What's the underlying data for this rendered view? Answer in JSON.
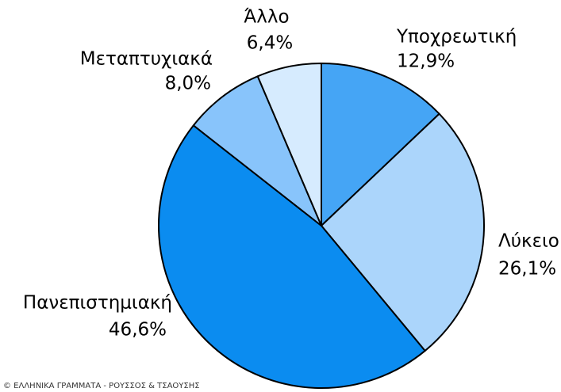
{
  "chart_data": {
    "type": "pie",
    "categories": [
      "Υποχρεωτική",
      "Λύκειο",
      "Πανεπιστημιακή",
      "Μεταπτυχιακά",
      "Άλλο"
    ],
    "values": [
      12.9,
      26.1,
      46.6,
      8.0,
      6.4
    ],
    "value_labels": [
      "12,9%",
      "26,1%",
      "46,6%",
      "8,0%",
      "6,4%"
    ],
    "colors": [
      "#45a5f5",
      "#abd5fb",
      "#0b8cf0",
      "#88c4fb",
      "#d6ebfe"
    ],
    "footer": "© ΕΛΛΗΝΙΚΑ ΓΡΑΜΜΑΤΑ - ΡΟΥΣΣΟΣ & ΤΣΑΟΥΣΗΣ"
  }
}
